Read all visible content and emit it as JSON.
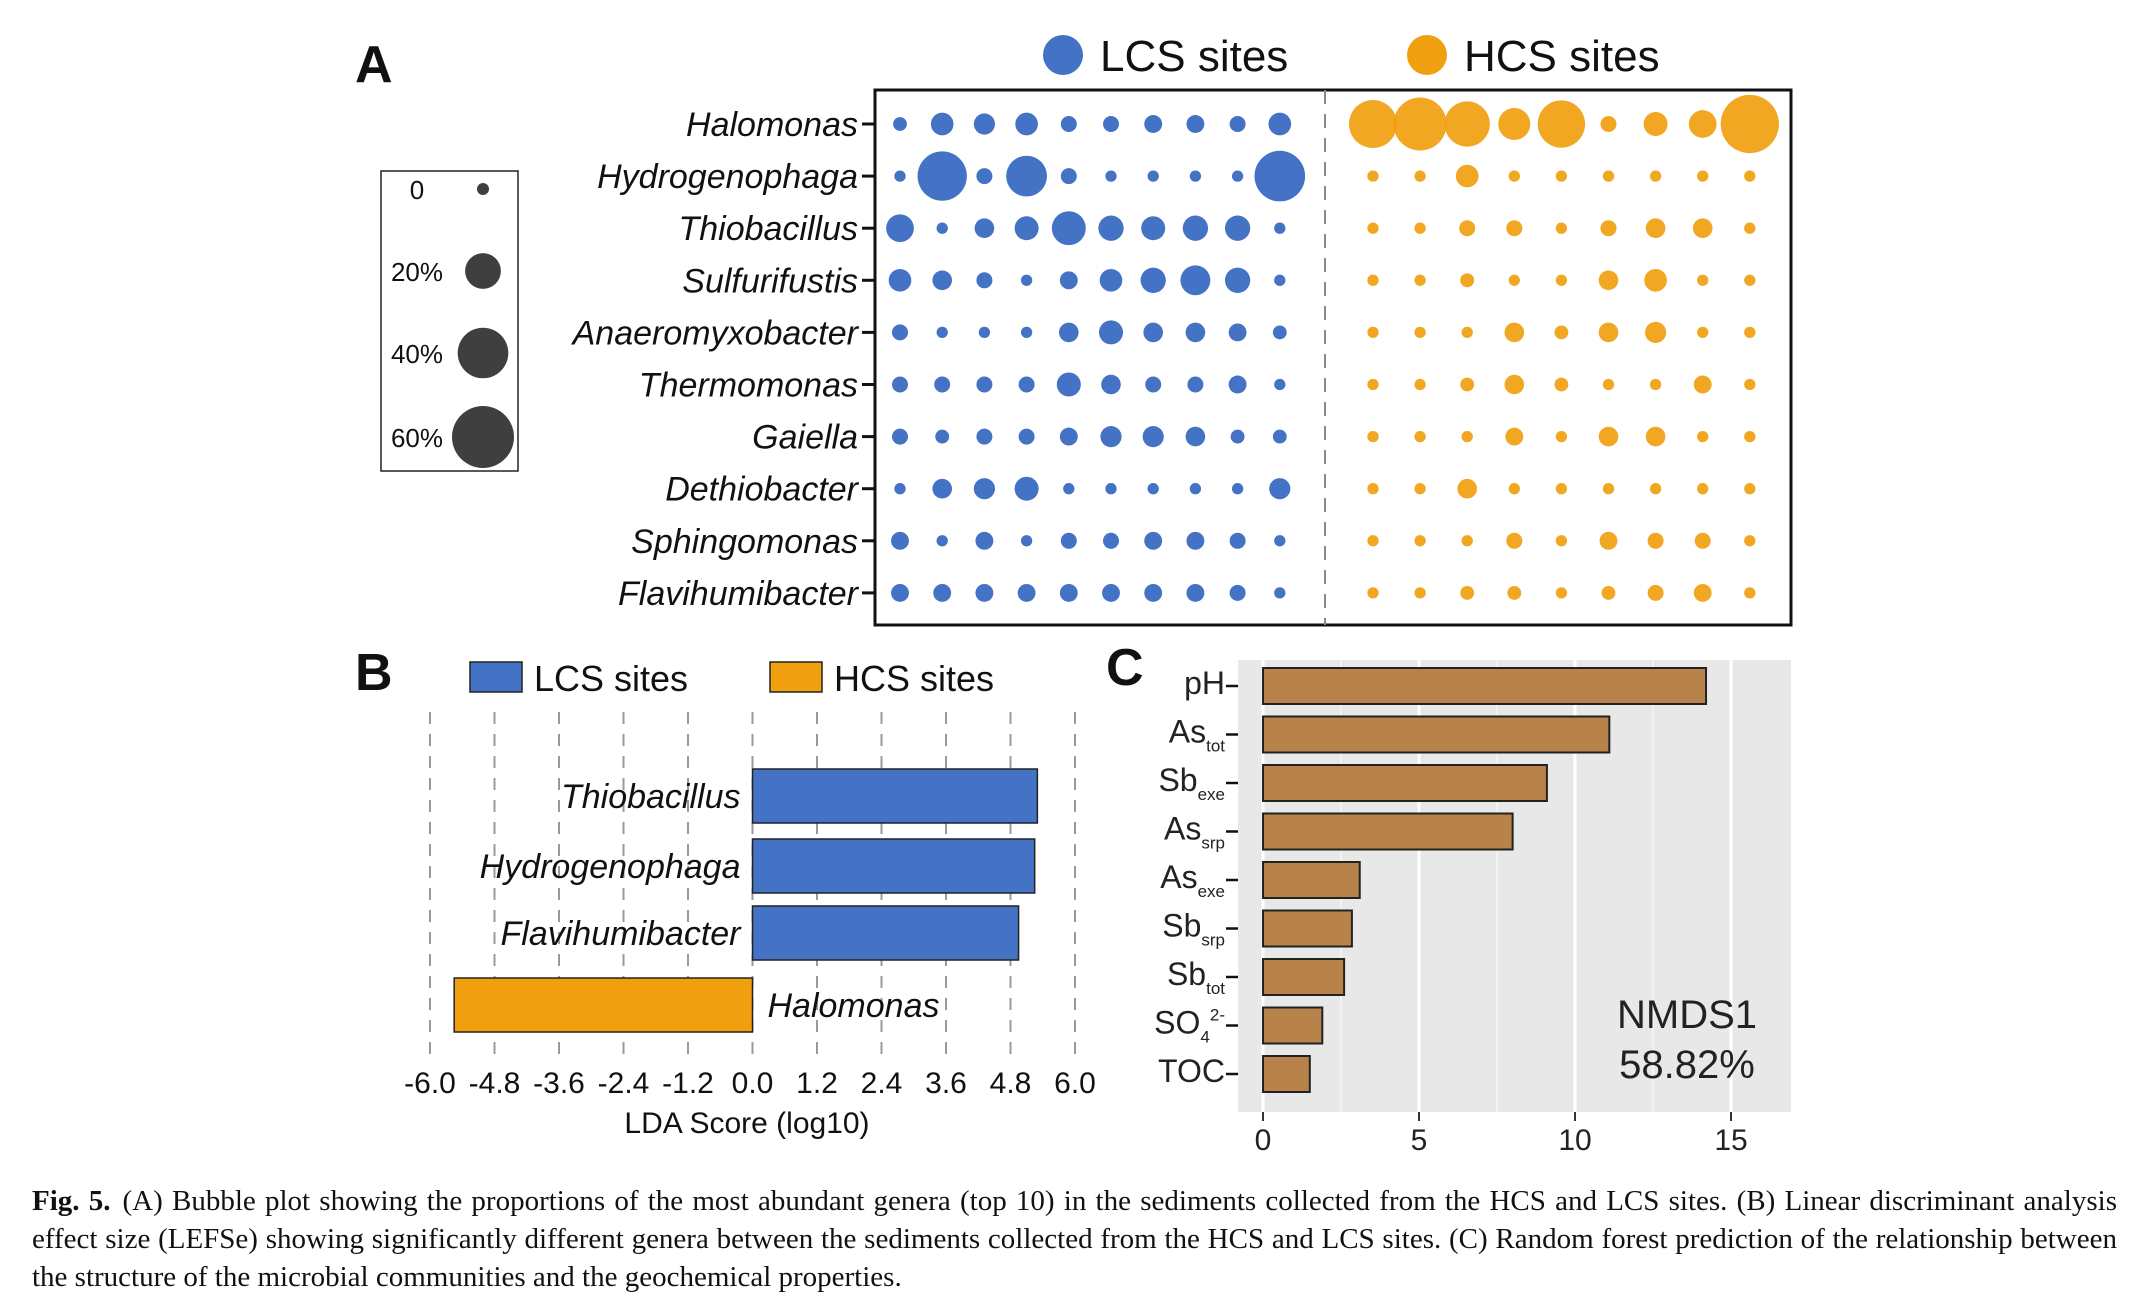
{
  "colors": {
    "lcs": "#4472c4",
    "hcs": "#f0a00f",
    "rf_bar": "#b7834a",
    "rf_panel_bg": "#e8e8e8",
    "legend_bubble": "#3f3f3f"
  },
  "panel_labels": {
    "a": "A",
    "b": "B",
    "c": "C"
  },
  "caption": {
    "label": "Fig. 5.",
    "text": "(A) Bubble plot showing the proportions of the most abundant genera (top 10) in the sediments collected from the HCS and LCS sites. (B) Linear discriminant analysis effect size (LEFSe) showing significantly different genera between the sediments collected from the HCS and LCS sites. (C) Random forest prediction of the relationship between the structure of the microbial communities and the geochemical properties."
  },
  "chart_data": [
    {
      "panel": "A",
      "type": "scatter",
      "title": "",
      "legend": {
        "groups": [
          "LCS sites",
          "HCS sites"
        ],
        "size_labels": [
          "0",
          "20%",
          "40%",
          "60%"
        ],
        "size_values": [
          0,
          20,
          40,
          60
        ]
      },
      "genera": [
        "Halomonas",
        "Hydrogenophaga",
        "Thiobacillus",
        "Sulfurifustis",
        "Anaeromyxobacter",
        "Thermomonas",
        "Gaiella",
        "Dethiobacter",
        "Sphingomonas",
        "Flavihumibacter"
      ],
      "lcs_values": [
        [
          3,
          8,
          7,
          8,
          4,
          4,
          5,
          5,
          4,
          8
        ],
        [
          2,
          38,
          4,
          26,
          4,
          2,
          2,
          2,
          2,
          40
        ],
        [
          12,
          2,
          6,
          9,
          18,
          10,
          9,
          10,
          10,
          2
        ],
        [
          8,
          6,
          4,
          2,
          5,
          8,
          10,
          14,
          10,
          2
        ],
        [
          4,
          2,
          2,
          2,
          6,
          9,
          6,
          6,
          5,
          3
        ],
        [
          4,
          4,
          4,
          4,
          9,
          6,
          4,
          4,
          5,
          2
        ],
        [
          4,
          3,
          4,
          4,
          5,
          7,
          7,
          6,
          3,
          3
        ],
        [
          2,
          6,
          7,
          9,
          2,
          2,
          2,
          2,
          2,
          7
        ],
        [
          5,
          2,
          5,
          2,
          4,
          4,
          5,
          5,
          4,
          2
        ],
        [
          5,
          5,
          5,
          5,
          5,
          5,
          5,
          5,
          4,
          2
        ]
      ],
      "hcs_values": [
        [
          36,
          44,
          32,
          16,
          35,
          4,
          9,
          12,
          53
        ],
        [
          2,
          2,
          8,
          2,
          2,
          2,
          2,
          2,
          2
        ],
        [
          2,
          2,
          4,
          4,
          2,
          4,
          6,
          6,
          2
        ],
        [
          2,
          2,
          3,
          2,
          2,
          6,
          8,
          2,
          2
        ],
        [
          2,
          2,
          2,
          6,
          3,
          6,
          7,
          2,
          2
        ],
        [
          2,
          2,
          3,
          6,
          3,
          2,
          2,
          5,
          2
        ],
        [
          2,
          2,
          2,
          5,
          2,
          6,
          6,
          2,
          2
        ],
        [
          2,
          2,
          6,
          2,
          2,
          2,
          2,
          2,
          2
        ],
        [
          2,
          2,
          2,
          4,
          2,
          5,
          4,
          4,
          2
        ],
        [
          2,
          2,
          3,
          3,
          2,
          3,
          4,
          5,
          2
        ]
      ]
    },
    {
      "panel": "B",
      "type": "bar",
      "title": "",
      "legend": [
        "LCS sites",
        "HCS sites"
      ],
      "xlabel": "LDA Score (log10)",
      "ylabel": "",
      "xlim": [
        -6.0,
        6.0
      ],
      "xticks": [
        "-6.0",
        "-4.8",
        "-3.6",
        "-2.4",
        "-1.2",
        "0.0",
        "1.2",
        "2.4",
        "3.6",
        "4.8",
        "6.0"
      ],
      "categories": [
        "Thiobacillus",
        "Hydrogenophaga",
        "Flavihumibacter",
        "Halomonas"
      ],
      "values": [
        5.3,
        5.25,
        4.95,
        -5.55
      ],
      "groups": [
        "LCS sites",
        "LCS sites",
        "LCS sites",
        "HCS sites"
      ]
    },
    {
      "panel": "C",
      "type": "bar",
      "title": "",
      "xlabel": "",
      "ylabel": "",
      "xlim": [
        0,
        16.2
      ],
      "xticks": [
        "0",
        "5",
        "10",
        "15"
      ],
      "categories": [
        {
          "base": "pH",
          "sub": "",
          "sup": ""
        },
        {
          "base": "As",
          "sub": "tot",
          "sup": ""
        },
        {
          "base": "Sb",
          "sub": "exe",
          "sup": ""
        },
        {
          "base": "As",
          "sub": "srp",
          "sup": ""
        },
        {
          "base": "As",
          "sub": "exe",
          "sup": ""
        },
        {
          "base": "Sb",
          "sub": "srp",
          "sup": ""
        },
        {
          "base": "Sb",
          "sub": "tot",
          "sup": ""
        },
        {
          "base": "SO",
          "sub": "4",
          "sup": "2-"
        },
        {
          "base": "TOC",
          "sub": "",
          "sup": ""
        }
      ],
      "values": [
        14.2,
        11.1,
        9.1,
        8.0,
        3.1,
        2.85,
        2.6,
        1.9,
        1.5
      ],
      "annotation": [
        "NMDS1",
        "58.82%"
      ]
    }
  ]
}
